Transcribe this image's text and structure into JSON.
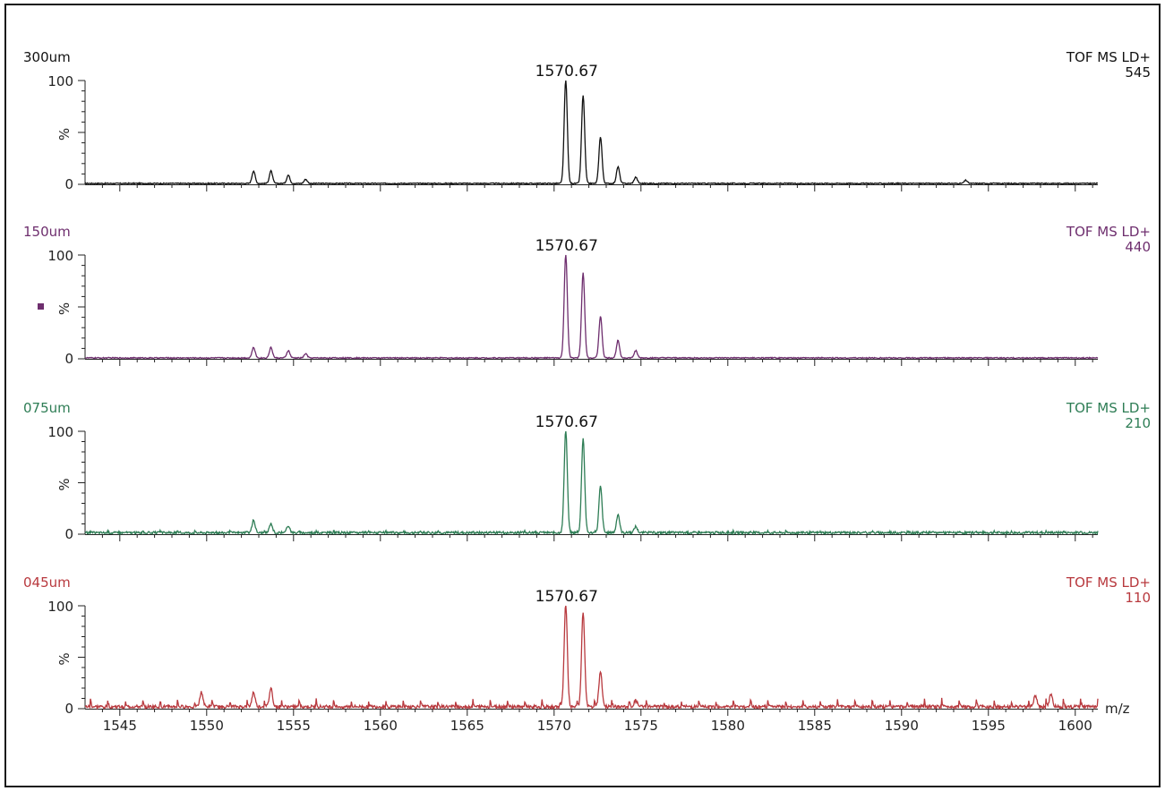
{
  "chart_data": [
    {
      "type": "line",
      "sample_label": "300um",
      "instrument_label": "TOF MS LD+",
      "intensity": "545",
      "peak_label": "1570.67",
      "color": "#111111",
      "ylabel": "%",
      "yticks": [
        "100",
        "0"
      ],
      "ylim": [
        0,
        100
      ],
      "xlim": [
        1543,
        1601.3
      ],
      "noise": 1.0,
      "periodic_noise": 0,
      "peaks": [
        {
          "mz": 1552.7,
          "int": 12
        },
        {
          "mz": 1553.7,
          "int": 12
        },
        {
          "mz": 1554.7,
          "int": 8
        },
        {
          "mz": 1555.7,
          "int": 4
        },
        {
          "mz": 1570.67,
          "int": 100
        },
        {
          "mz": 1571.67,
          "int": 85
        },
        {
          "mz": 1572.67,
          "int": 45
        },
        {
          "mz": 1573.68,
          "int": 16
        },
        {
          "mz": 1574.7,
          "int": 6
        },
        {
          "mz": 1593.7,
          "int": 3
        }
      ]
    },
    {
      "type": "line",
      "sample_label": "150um",
      "instrument_label": "TOF MS LD+",
      "intensity": "440",
      "peak_label": "1570.67",
      "color": "#6e2e6e",
      "ylabel": "%",
      "yticks": [
        "100",
        "0"
      ],
      "ylim": [
        0,
        100
      ],
      "xlim": [
        1543,
        1601.3
      ],
      "noise": 1.0,
      "periodic_noise": 0,
      "peaks": [
        {
          "mz": 1552.7,
          "int": 10
        },
        {
          "mz": 1553.7,
          "int": 10
        },
        {
          "mz": 1554.7,
          "int": 7
        },
        {
          "mz": 1555.7,
          "int": 4
        },
        {
          "mz": 1570.67,
          "int": 100
        },
        {
          "mz": 1571.67,
          "int": 82
        },
        {
          "mz": 1572.67,
          "int": 40
        },
        {
          "mz": 1573.68,
          "int": 17
        },
        {
          "mz": 1574.7,
          "int": 7
        }
      ]
    },
    {
      "type": "line",
      "sample_label": "075um",
      "instrument_label": "TOF MS LD+",
      "intensity": "210",
      "peak_label": "1570.67",
      "color": "#2e7d55",
      "ylabel": "%",
      "yticks": [
        "100",
        "0"
      ],
      "ylim": [
        0,
        100
      ],
      "xlim": [
        1543,
        1601.3
      ],
      "noise": 2.2,
      "periodic_noise": 1.5,
      "peaks": [
        {
          "mz": 1552.7,
          "int": 12
        },
        {
          "mz": 1553.7,
          "int": 9
        },
        {
          "mz": 1554.7,
          "int": 7
        },
        {
          "mz": 1570.67,
          "int": 100
        },
        {
          "mz": 1571.67,
          "int": 92
        },
        {
          "mz": 1572.67,
          "int": 45
        },
        {
          "mz": 1573.68,
          "int": 18
        },
        {
          "mz": 1574.7,
          "int": 6
        }
      ]
    },
    {
      "type": "line",
      "sample_label": "045um",
      "instrument_label": "TOF MS LD+",
      "intensity": "110",
      "peak_label": "1570.67",
      "color": "#b8393e",
      "ylabel": "%",
      "yticks": [
        "100",
        "0"
      ],
      "ylim": [
        0,
        100
      ],
      "xlim": [
        1543,
        1601.3
      ],
      "noise": 3.0,
      "periodic_noise": 8,
      "peaks": [
        {
          "mz": 1549.7,
          "int": 14
        },
        {
          "mz": 1552.7,
          "int": 14
        },
        {
          "mz": 1553.7,
          "int": 18
        },
        {
          "mz": 1570.67,
          "int": 100
        },
        {
          "mz": 1571.67,
          "int": 92
        },
        {
          "mz": 1572.67,
          "int": 35
        },
        {
          "mz": 1574.7,
          "int": 6
        },
        {
          "mz": 1597.7,
          "int": 11
        },
        {
          "mz": 1598.6,
          "int": 12
        }
      ],
      "xlabel": "m/z",
      "xticks": [
        1545,
        1550,
        1555,
        1560,
        1565,
        1570,
        1575,
        1580,
        1585,
        1590,
        1595,
        1600
      ]
    }
  ]
}
